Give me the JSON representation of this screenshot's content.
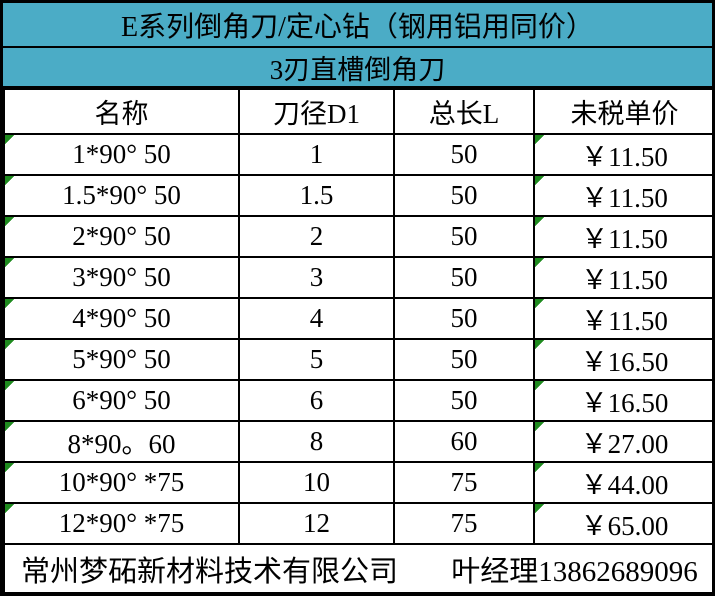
{
  "title": "E系列倒角刀/定心钻（钢用铝用同价）",
  "subtitle": "3刃直槽倒角刀",
  "columns": [
    "名称",
    "刀径D1",
    "总长L",
    "未税单价"
  ],
  "rows": [
    {
      "name": "1*90° 50",
      "d1": "1",
      "len": "50",
      "price": "￥11.50"
    },
    {
      "name": "1.5*90° 50",
      "d1": "1.5",
      "len": "50",
      "price": "￥11.50"
    },
    {
      "name": "2*90° 50",
      "d1": "2",
      "len": "50",
      "price": "￥11.50"
    },
    {
      "name": "3*90° 50",
      "d1": "3",
      "len": "50",
      "price": "￥11.50"
    },
    {
      "name": "4*90° 50",
      "d1": "4",
      "len": "50",
      "price": "￥11.50"
    },
    {
      "name": "5*90° 50",
      "d1": "5",
      "len": "50",
      "price": "￥16.50"
    },
    {
      "name": "6*90° 50",
      "d1": "6",
      "len": "50",
      "price": "￥16.50"
    },
    {
      "name": "8*90。60",
      "d1": "8",
      "len": "60",
      "price": "￥27.00"
    },
    {
      "name": "10*90° *75",
      "d1": "10",
      "len": "75",
      "price": "￥44.00"
    },
    {
      "name": "12*90° *75",
      "d1": "12",
      "len": "75",
      "price": "￥65.00"
    }
  ],
  "footer": {
    "company": "常州梦砳新材料技术有限公司",
    "contact": "叶经理13862689096"
  },
  "colors": {
    "header_bg": "#4bacc6",
    "border": "#000000",
    "error_indicator": "#1f8b1f"
  }
}
